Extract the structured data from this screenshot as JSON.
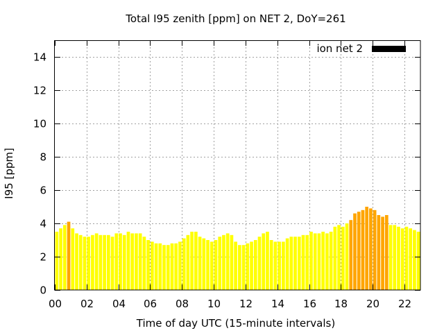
{
  "chart_data": {
    "type": "bar",
    "title": "Total I95 zenith [ppm] on NET 2, DoY=261",
    "xlabel": "Time of day UTC (15-minute intervals)",
    "ylabel": "I95 [ppm]",
    "legend": {
      "label": "ion net 2",
      "color": "#000000",
      "position": "top-right"
    },
    "grid": true,
    "xlim": [
      0,
      23
    ],
    "ylim": [
      0,
      15
    ],
    "x_ticks": [
      0,
      2,
      4,
      6,
      8,
      10,
      12,
      14,
      16,
      18,
      20,
      22
    ],
    "x_tick_labels": [
      "00",
      "02",
      "04",
      "06",
      "08",
      "10",
      "12",
      "14",
      "16",
      "18",
      "20",
      "22"
    ],
    "y_ticks": [
      0,
      2,
      4,
      6,
      8,
      10,
      12,
      14
    ],
    "y_tick_labels": [
      "0",
      "2",
      "4",
      "6",
      "8",
      "10",
      "12",
      "14"
    ],
    "bar_interval_hours": 0.25,
    "colors": {
      "low": "#ffff00",
      "medium": "#ffa500"
    },
    "values": [
      3.5,
      3.7,
      3.9,
      4.1,
      3.7,
      3.4,
      3.3,
      3.2,
      3.2,
      3.3,
      3.4,
      3.3,
      3.3,
      3.3,
      3.2,
      3.4,
      3.4,
      3.3,
      3.5,
      3.4,
      3.4,
      3.4,
      3.2,
      3.0,
      2.9,
      2.8,
      2.8,
      2.7,
      2.7,
      2.8,
      2.8,
      2.9,
      3.1,
      3.3,
      3.5,
      3.5,
      3.2,
      3.1,
      3.0,
      2.9,
      3.0,
      3.2,
      3.3,
      3.4,
      3.3,
      2.9,
      2.7,
      2.7,
      2.8,
      2.9,
      3.0,
      3.2,
      3.4,
      3.5,
      3.0,
      2.9,
      2.9,
      2.9,
      3.1,
      3.2,
      3.2,
      3.2,
      3.3,
      3.3,
      3.5,
      3.4,
      3.4,
      3.5,
      3.4,
      3.5,
      3.8,
      3.9,
      3.8,
      4.0,
      4.2,
      4.6,
      4.7,
      4.8,
      5.0,
      4.9,
      4.8,
      4.5,
      4.4,
      4.5,
      3.9,
      3.9,
      3.8,
      3.7,
      3.8,
      3.7,
      3.6,
      3.5
    ],
    "bar_colors": [
      "low",
      "low",
      "low",
      "medium",
      "low",
      "low",
      "low",
      "low",
      "low",
      "low",
      "low",
      "low",
      "low",
      "low",
      "low",
      "low",
      "low",
      "low",
      "low",
      "low",
      "low",
      "low",
      "low",
      "low",
      "low",
      "low",
      "low",
      "low",
      "low",
      "low",
      "low",
      "low",
      "low",
      "low",
      "low",
      "low",
      "low",
      "low",
      "low",
      "low",
      "low",
      "low",
      "low",
      "low",
      "low",
      "low",
      "low",
      "low",
      "low",
      "low",
      "low",
      "low",
      "low",
      "low",
      "low",
      "low",
      "low",
      "low",
      "low",
      "low",
      "low",
      "low",
      "low",
      "low",
      "low",
      "low",
      "low",
      "low",
      "low",
      "low",
      "low",
      "low",
      "low",
      "low",
      "medium",
      "medium",
      "medium",
      "medium",
      "medium",
      "medium",
      "medium",
      "medium",
      "medium",
      "medium",
      "low",
      "low",
      "low",
      "low",
      "low",
      "low",
      "low",
      "low"
    ]
  }
}
